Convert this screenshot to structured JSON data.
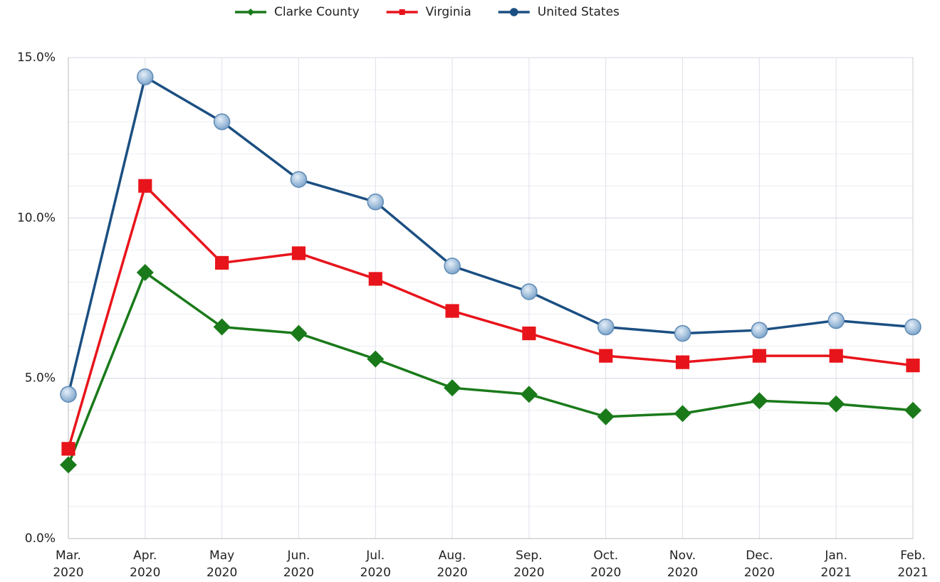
{
  "chart_data": {
    "type": "line",
    "categories": [
      "Mar. 2020",
      "Apr. 2020",
      "May 2020",
      "Jun. 2020",
      "Jul. 2020",
      "Aug. 2020",
      "Sep. 2020",
      "Oct. 2020",
      "Nov. 2020",
      "Dec. 2020",
      "Jan. 2021",
      "Feb. 2021"
    ],
    "series": [
      {
        "name": "Clarke County",
        "color": "#1a7a1a",
        "marker": "diamond",
        "values": [
          2.3,
          8.3,
          6.6,
          6.4,
          5.6,
          4.7,
          4.5,
          3.8,
          3.9,
          4.3,
          4.2,
          4.0
        ]
      },
      {
        "name": "Virginia",
        "color": "#e8141b",
        "marker": "square",
        "values": [
          2.8,
          11.0,
          8.6,
          8.9,
          8.1,
          7.1,
          6.4,
          5.7,
          5.5,
          5.7,
          5.7,
          5.4
        ]
      },
      {
        "name": "United States",
        "color": "#1b4f82",
        "marker": "circle",
        "values": [
          4.5,
          14.4,
          13.0,
          11.2,
          10.5,
          8.5,
          7.7,
          6.6,
          6.4,
          6.5,
          6.8,
          6.6
        ]
      }
    ],
    "ylim": [
      0,
      15
    ],
    "yticks": [
      {
        "value": 0,
        "label": "0.0%"
      },
      {
        "value": 5,
        "label": "5.0%"
      },
      {
        "value": 10,
        "label": "10.0%"
      },
      {
        "value": 15,
        "label": "15.0%"
      }
    ],
    "yticks_minor": [
      1,
      2,
      3,
      4,
      6,
      7,
      8,
      9,
      11,
      12,
      13,
      14
    ],
    "grid": true,
    "legend": "top"
  }
}
